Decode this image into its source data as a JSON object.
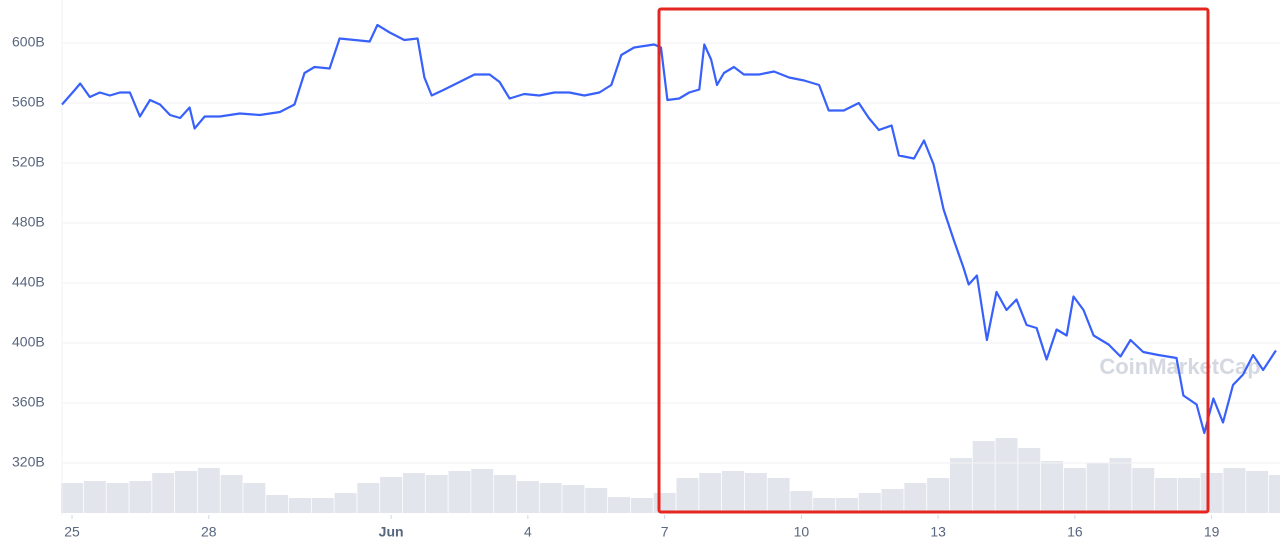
{
  "chart_data": {
    "type": "line",
    "watermark": "CoinMarketCap",
    "color": "#3861fb",
    "x": [
      -0.22,
      0.07,
      0.18,
      0.39,
      0.61,
      0.83,
      1.05,
      1.27,
      1.49,
      1.71,
      1.93,
      2.15,
      2.37,
      2.58,
      2.69,
      2.91,
      3.24,
      3.68,
      4.12,
      4.56,
      4.88,
      5.1,
      5.32,
      5.65,
      5.87,
      6.2,
      6.53,
      6.7,
      6.97,
      7.29,
      7.58,
      7.73,
      7.89,
      8.17,
      8.5,
      8.83,
      9.16,
      9.38,
      9.6,
      9.92,
      10.25,
      10.58,
      10.91,
      11.24,
      11.57,
      11.83,
      12.05,
      12.33,
      12.55,
      12.77,
      12.92,
      13.06,
      13.32,
      13.54,
      13.76,
      13.87,
      14.02,
      14.15,
      14.3,
      14.52,
      14.74,
      15.07,
      15.4,
      15.73,
      16.06,
      16.39,
      16.6,
      16.93,
      17.26,
      17.48,
      17.7,
      17.98,
      18.14,
      18.47,
      18.69,
      18.9,
      19.12,
      19.34,
      19.56,
      19.67,
      19.85,
      20.07,
      20.28,
      20.5,
      20.72,
      20.94,
      21.16,
      21.38,
      21.6,
      21.82,
      21.97,
      22.19,
      22.41,
      22.74,
      23.0,
      23.22,
      23.5,
      23.83,
      24.23,
      24.38,
      24.67,
      24.84,
      25.04,
      25.25,
      25.47,
      25.69,
      25.91,
      26.13,
      26.41
    ],
    "values": [
      559,
      569,
      573,
      564,
      567,
      565,
      567,
      567,
      551,
      562,
      559,
      552,
      550,
      557,
      543,
      551,
      551,
      553,
      552,
      554,
      559,
      580,
      584,
      583,
      603,
      602,
      601,
      612,
      607,
      602,
      603,
      577,
      565,
      569,
      574,
      579,
      579,
      574,
      563,
      566,
      565,
      567,
      567,
      565,
      567,
      572,
      592,
      597,
      598,
      599,
      597,
      562,
      563,
      567,
      569,
      599,
      589,
      572,
      580,
      584,
      579,
      579,
      581,
      577,
      575,
      572,
      555,
      555,
      560,
      550,
      542,
      545,
      525,
      523,
      535,
      519,
      489,
      469,
      450,
      439,
      445,
      402,
      434,
      422,
      429,
      412,
      410,
      389,
      409,
      405,
      431,
      422,
      405,
      399,
      391,
      402,
      394,
      392,
      390,
      365,
      359,
      340,
      363,
      347,
      372,
      379,
      392,
      382,
      395
    ],
    "xlim": [
      -0.22,
      26.5
    ],
    "xticks": [
      {
        "value": 0,
        "label": "25"
      },
      {
        "value": 3,
        "label": "28"
      },
      {
        "value": 7,
        "label": "Jun"
      },
      {
        "value": 10,
        "label": "4"
      },
      {
        "value": 13,
        "label": "7"
      },
      {
        "value": 16,
        "label": "10"
      },
      {
        "value": 19,
        "label": "13"
      },
      {
        "value": 22,
        "label": "16"
      },
      {
        "value": 25,
        "label": "19"
      }
    ],
    "ylim": [
      285.3,
      628.7
    ],
    "yticks": [
      {
        "value": 320,
        "label": "320B"
      },
      {
        "value": 360,
        "label": "360B"
      },
      {
        "value": 400,
        "label": "400B"
      },
      {
        "value": 440,
        "label": "440B"
      },
      {
        "value": 480,
        "label": "480B"
      },
      {
        "value": 520,
        "label": "520B"
      },
      {
        "value": 560,
        "label": "560B"
      },
      {
        "value": 600,
        "label": "600B"
      }
    ],
    "grid": true,
    "volume": {
      "color": "#e2e5ec",
      "y2lim": [
        0,
        100
      ],
      "x": [
        0,
        0.5,
        1,
        1.5,
        2,
        2.5,
        3,
        3.5,
        4,
        4.5,
        5,
        5.5,
        6,
        6.5,
        7,
        7.5,
        8,
        8.5,
        9,
        9.5,
        10,
        10.5,
        11,
        11.5,
        12,
        12.5,
        13,
        13.5,
        14,
        14.5,
        15,
        15.5,
        16,
        16.5,
        17,
        17.5,
        18,
        18.5,
        19,
        19.5,
        20,
        20.5,
        21,
        21.5,
        22,
        22.5,
        23,
        23.5,
        24,
        24.5,
        25,
        25.5,
        26,
        26.5
      ],
      "values": [
        30,
        32,
        30,
        32,
        40,
        42,
        45,
        38,
        30,
        18,
        15,
        15,
        20,
        30,
        36,
        40,
        38,
        42,
        44,
        38,
        32,
        30,
        28,
        25,
        16,
        15,
        20,
        35,
        40,
        42,
        40,
        35,
        22,
        15,
        15,
        20,
        24,
        30,
        35,
        55,
        72,
        75,
        65,
        52,
        45,
        50,
        55,
        45,
        35,
        35,
        40,
        45,
        42,
        38
      ]
    }
  }
}
